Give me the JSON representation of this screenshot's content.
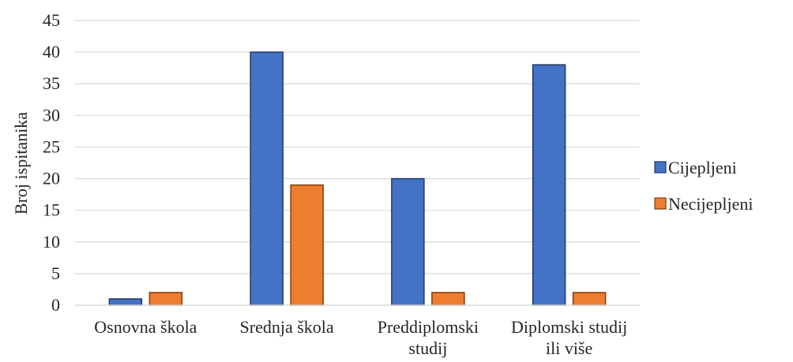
{
  "chart_data": {
    "type": "bar",
    "title": "",
    "xlabel": "",
    "ylabel": "Broj ispitanika",
    "ylim": [
      0,
      45
    ],
    "yticks": [
      "0",
      "5",
      "10",
      "15",
      "20",
      "25",
      "30",
      "35",
      "40",
      "45"
    ],
    "grid": true,
    "legend_position": "right",
    "categories": [
      [
        "Osnovna škola"
      ],
      [
        "Srednja škola"
      ],
      [
        "Preddiplomski",
        "studij"
      ],
      [
        "Diplomski studij",
        "ili više"
      ]
    ],
    "series": [
      {
        "name": "Cijepljeni",
        "color": "#4472C4",
        "values": [
          1,
          40,
          20,
          38
        ]
      },
      {
        "name": "Necijepljeni",
        "color": "#ED7D31",
        "values": [
          2,
          19,
          2,
          2
        ]
      }
    ]
  }
}
